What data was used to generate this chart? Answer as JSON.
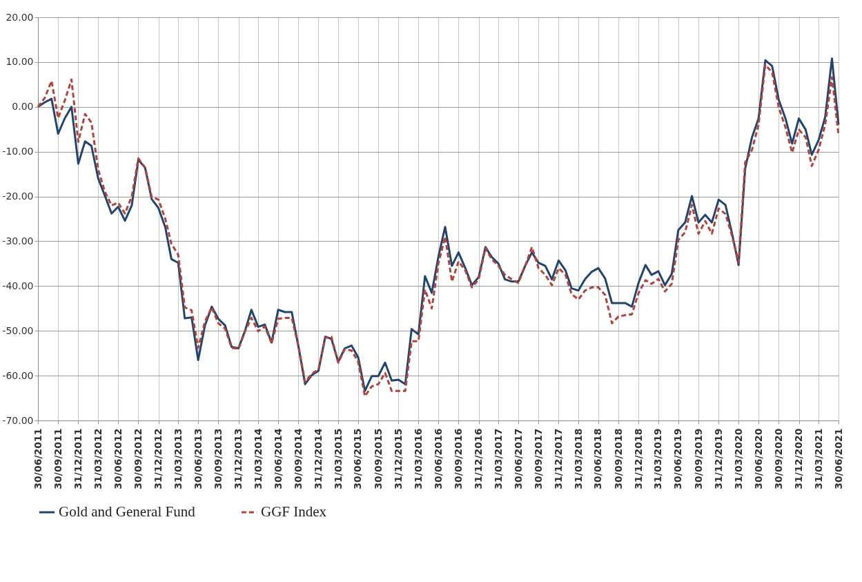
{
  "chart_data": {
    "type": "line",
    "x": [
      "2011-06-30",
      "2011-07-31",
      "2011-08-31",
      "2011-09-30",
      "2011-10-31",
      "2011-11-30",
      "2011-12-31",
      "2012-01-31",
      "2012-02-29",
      "2012-03-31",
      "2012-04-30",
      "2012-05-31",
      "2012-06-30",
      "2012-07-31",
      "2012-08-31",
      "2012-09-30",
      "2012-10-31",
      "2012-11-30",
      "2012-12-31",
      "2013-01-31",
      "2013-02-28",
      "2013-03-31",
      "2013-04-30",
      "2013-05-31",
      "2013-06-30",
      "2013-07-31",
      "2013-08-31",
      "2013-09-30",
      "2013-10-31",
      "2013-11-30",
      "2013-12-31",
      "2014-01-31",
      "2014-02-28",
      "2014-03-31",
      "2014-04-30",
      "2014-05-31",
      "2014-06-30",
      "2014-07-31",
      "2014-08-31",
      "2014-09-30",
      "2014-10-31",
      "2014-11-30",
      "2014-12-31",
      "2015-01-31",
      "2015-02-28",
      "2015-03-31",
      "2015-04-30",
      "2015-05-31",
      "2015-06-30",
      "2015-07-31",
      "2015-08-31",
      "2015-09-30",
      "2015-10-31",
      "2015-11-30",
      "2015-12-31",
      "2016-01-31",
      "2016-02-29",
      "2016-03-31",
      "2016-04-30",
      "2016-05-31",
      "2016-06-30",
      "2016-07-31",
      "2016-08-31",
      "2016-09-30",
      "2016-10-31",
      "2016-11-30",
      "2016-12-31",
      "2017-01-31",
      "2017-02-28",
      "2017-03-31",
      "2017-04-30",
      "2017-05-31",
      "2017-06-30",
      "2017-07-31",
      "2017-08-31",
      "2017-09-30",
      "2017-10-31",
      "2017-11-30",
      "2017-12-31",
      "2018-01-31",
      "2018-02-28",
      "2018-03-31",
      "2018-04-30",
      "2018-05-31",
      "2018-06-30",
      "2018-07-31",
      "2018-08-31",
      "2018-09-30",
      "2018-10-31",
      "2018-11-30",
      "2018-12-31",
      "2019-01-31",
      "2019-02-28",
      "2019-03-31",
      "2019-04-30",
      "2019-05-31",
      "2019-06-30",
      "2019-07-31",
      "2019-08-31",
      "2019-09-30",
      "2019-10-31",
      "2019-11-30",
      "2019-12-31",
      "2020-01-31",
      "2020-02-29",
      "2020-03-31",
      "2020-04-30",
      "2020-05-31",
      "2020-06-30",
      "2020-07-31",
      "2020-08-31",
      "2020-09-30",
      "2020-10-31",
      "2020-11-30",
      "2020-12-31",
      "2021-01-31",
      "2021-02-28",
      "2021-03-31",
      "2021-04-30",
      "2021-05-31",
      "2021-06-30"
    ],
    "series": [
      {
        "name": "Gold and General Fund",
        "color": "#23446e",
        "line_style": "solid",
        "values": [
          0,
          1,
          1.8,
          -6,
          -2.5,
          0,
          -12.7,
          -7.7,
          -8.7,
          -16,
          -19.8,
          -23.8,
          -22.3,
          -25.4,
          -22,
          -11.8,
          -13.6,
          -20.6,
          -22.6,
          -26.9,
          -34,
          -34.8,
          -47.2,
          -47,
          -56.5,
          -48.8,
          -44.6,
          -47.3,
          -48.8,
          -53.6,
          -53.9,
          -49.8,
          -45.3,
          -49.1,
          -48.6,
          -52.6,
          -45.3,
          -45.8,
          -45.8,
          -53.3,
          -61.9,
          -59.9,
          -58.9,
          -51.3,
          -51.8,
          -56.9,
          -53.9,
          -53.3,
          -55.9,
          -63.4,
          -60.1,
          -60.1,
          -57.1,
          -61.1,
          -60.9,
          -61.9,
          -49.6,
          -50.8,
          -37.8,
          -41.5,
          -33.5,
          -26.8,
          -35.5,
          -32.5,
          -36,
          -39.8,
          -38,
          -31.3,
          -33.5,
          -35,
          -38.5,
          -39,
          -39,
          -35.5,
          -32.5,
          -34.8,
          -35.5,
          -38.5,
          -34.3,
          -36.5,
          -40.5,
          -41,
          -38.5,
          -36.8,
          -36,
          -38.3,
          -43.8,
          -43.8,
          -43.8,
          -44.6,
          -39.2,
          -35.3,
          -37.5,
          -36.7,
          -39.8,
          -37.3,
          -27.5,
          -25.8,
          -19.9,
          -25.8,
          -24.1,
          -25.8,
          -20.7,
          -21.9,
          -28,
          -35.3,
          -13.8,
          -6.8,
          -2.6,
          10.4,
          9.1,
          1.6,
          -2.6,
          -8.2,
          -2.6,
          -5.1,
          -10.7,
          -7.4,
          -2.3,
          10.8,
          -4
        ]
      },
      {
        "name": "GGF Index",
        "color": "#b0433a",
        "line_style": "dashed",
        "values": [
          0,
          2,
          5.8,
          -2.5,
          1.5,
          6.1,
          -7.8,
          -1.6,
          -3.5,
          -14,
          -18.9,
          -22,
          -21.4,
          -23.8,
          -20,
          -11.5,
          -13.6,
          -20.1,
          -20.7,
          -25,
          -30.6,
          -33,
          -44.8,
          -45.4,
          -53.8,
          -47.9,
          -44.8,
          -48.3,
          -49.5,
          -53.8,
          -54,
          -50,
          -47.1,
          -50.1,
          -49,
          -52.8,
          -47.3,
          -47.1,
          -47.1,
          -53.3,
          -61.4,
          -59.6,
          -58.6,
          -51.6,
          -51.3,
          -57.1,
          -54.1,
          -54.4,
          -56.9,
          -64.6,
          -62.4,
          -61.9,
          -59.4,
          -63.4,
          -63.4,
          -63.4,
          -52.3,
          -52.3,
          -40.8,
          -45,
          -35,
          -29,
          -39,
          -34.5,
          -36.5,
          -40.3,
          -38.5,
          -31.5,
          -34,
          -35.5,
          -37.5,
          -38.5,
          -39.3,
          -35.5,
          -31.3,
          -36,
          -37.5,
          -39.8,
          -36,
          -37.5,
          -41.8,
          -43,
          -41,
          -40.3,
          -40.3,
          -42,
          -48.3,
          -46.8,
          -46.5,
          -46.3,
          -41.5,
          -38.7,
          -39.5,
          -38.4,
          -41.2,
          -39.5,
          -29.7,
          -28,
          -21.9,
          -28.3,
          -25.5,
          -28.3,
          -22.7,
          -23.9,
          -28.6,
          -34.7,
          -12.4,
          -9.6,
          -4,
          9.4,
          7.7,
          -0.1,
          -4.6,
          -10.2,
          -5.1,
          -6.8,
          -13.2,
          -9.6,
          -4,
          6.6,
          -6.3
        ]
      }
    ],
    "xlim": [
      "2011-06-30",
      "2021-06-30"
    ],
    "xticks": [
      {
        "value": "2011-06-30",
        "label": "30/06/2011"
      },
      {
        "value": "2011-09-30",
        "label": "30/09/2011"
      },
      {
        "value": "2011-12-31",
        "label": "31/12/2011"
      },
      {
        "value": "2012-03-31",
        "label": "31/03/2012"
      },
      {
        "value": "2012-06-30",
        "label": "30/06/2012"
      },
      {
        "value": "2012-09-30",
        "label": "30/09/2012"
      },
      {
        "value": "2012-12-31",
        "label": "31/12/2012"
      },
      {
        "value": "2013-03-31",
        "label": "31/03/2013"
      },
      {
        "value": "2013-06-30",
        "label": "30/06/2013"
      },
      {
        "value": "2013-09-30",
        "label": "30/09/2013"
      },
      {
        "value": "2013-12-31",
        "label": "31/12/2013"
      },
      {
        "value": "2014-03-31",
        "label": "31/03/2014"
      },
      {
        "value": "2014-06-30",
        "label": "30/06/2014"
      },
      {
        "value": "2014-09-30",
        "label": "30/09/2014"
      },
      {
        "value": "2014-12-31",
        "label": "31/12/2014"
      },
      {
        "value": "2015-03-31",
        "label": "31/03/2015"
      },
      {
        "value": "2015-06-30",
        "label": "30/06/2015"
      },
      {
        "value": "2015-09-30",
        "label": "30/09/2015"
      },
      {
        "value": "2015-12-31",
        "label": "31/12/2015"
      },
      {
        "value": "2016-03-31",
        "label": "31/03/2016"
      },
      {
        "value": "2016-06-30",
        "label": "30/06/2016"
      },
      {
        "value": "2016-09-30",
        "label": "30/09/2016"
      },
      {
        "value": "2016-12-31",
        "label": "31/12/2016"
      },
      {
        "value": "2017-03-31",
        "label": "31/03/2017"
      },
      {
        "value": "2017-06-30",
        "label": "30/06/2017"
      },
      {
        "value": "2017-09-30",
        "label": "30/09/2017"
      },
      {
        "value": "2017-12-31",
        "label": "31/12/2017"
      },
      {
        "value": "2018-03-31",
        "label": "31/03/2018"
      },
      {
        "value": "2018-06-30",
        "label": "30/06/2018"
      },
      {
        "value": "2018-09-30",
        "label": "30/09/2018"
      },
      {
        "value": "2018-12-31",
        "label": "31/12/2018"
      },
      {
        "value": "2019-03-31",
        "label": "31/03/2019"
      },
      {
        "value": "2019-06-30",
        "label": "30/06/2019"
      },
      {
        "value": "2019-09-30",
        "label": "30/09/2019"
      },
      {
        "value": "2019-12-31",
        "label": "31/12/2019"
      },
      {
        "value": "2020-03-31",
        "label": "31/03/2020"
      },
      {
        "value": "2020-06-30",
        "label": "30/06/2020"
      },
      {
        "value": "2020-09-30",
        "label": "30/09/2020"
      },
      {
        "value": "2020-12-31",
        "label": "31/12/2020"
      },
      {
        "value": "2021-03-31",
        "label": "31/03/2021"
      },
      {
        "value": "2021-06-30",
        "label": "30/06/2021"
      }
    ],
    "ylim": [
      -70,
      20
    ],
    "yticks": [
      {
        "value": 20,
        "label": "20.00"
      },
      {
        "value": 10,
        "label": "10.00"
      },
      {
        "value": 0,
        "label": "0.00"
      },
      {
        "value": -10,
        "label": "-10.00"
      },
      {
        "value": -20,
        "label": "-20.00"
      },
      {
        "value": -30,
        "label": "-30.00"
      },
      {
        "value": -40,
        "label": "-40.00"
      },
      {
        "value": -50,
        "label": "-50.00"
      },
      {
        "value": -60,
        "label": "-60.00"
      },
      {
        "value": -70,
        "label": "-70.00"
      }
    ],
    "grid": true,
    "legend": "bottom"
  }
}
